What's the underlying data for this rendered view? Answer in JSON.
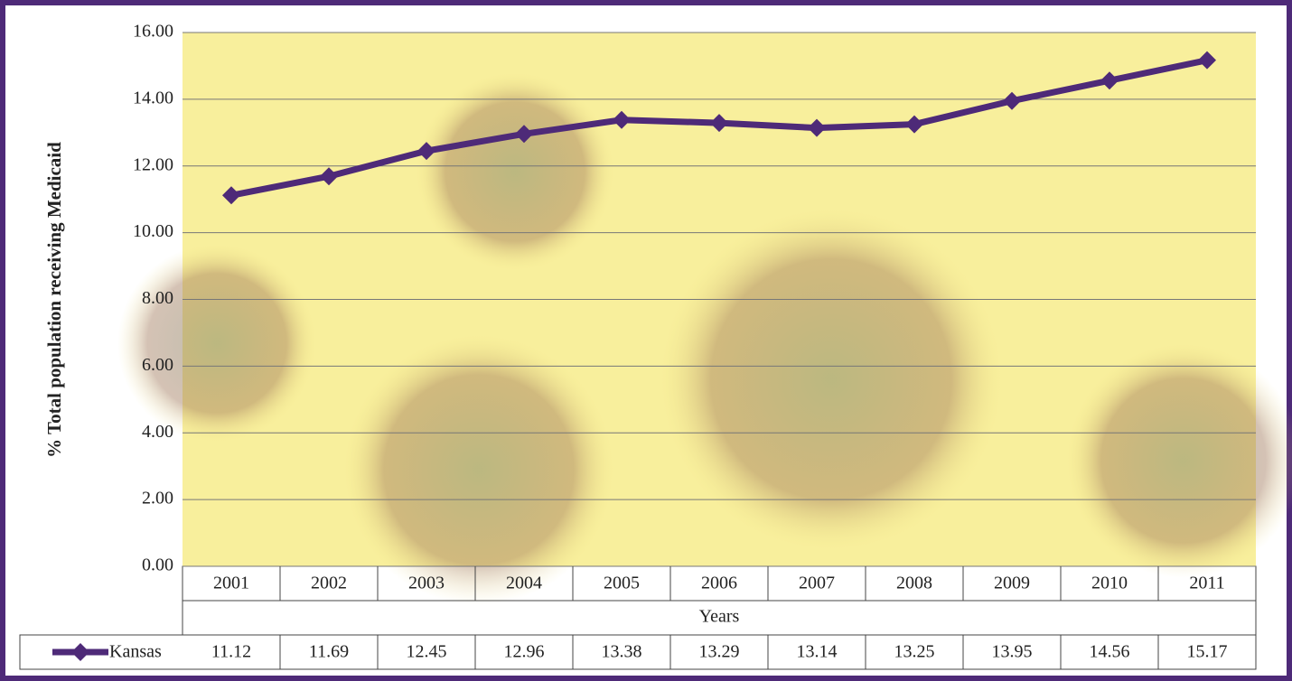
{
  "chart_data": {
    "type": "line",
    "y_label": "% Total population receiving Medicaid",
    "x_label": "Years",
    "categories": [
      "2001",
      "2002",
      "2003",
      "2004",
      "2005",
      "2006",
      "2007",
      "2008",
      "2009",
      "2010",
      "2011"
    ],
    "series": [
      {
        "name": "Kansas",
        "color": "#4e2a78",
        "values": [
          11.12,
          11.69,
          12.45,
          12.96,
          13.38,
          13.29,
          13.14,
          13.25,
          13.95,
          14.56,
          15.17
        ]
      }
    ],
    "ylim": [
      0,
      16
    ],
    "yticks": [
      {
        "value": 0,
        "label": "0.00"
      },
      {
        "value": 2,
        "label": "2.00"
      },
      {
        "value": 4,
        "label": "4.00"
      },
      {
        "value": 6,
        "label": "6.00"
      },
      {
        "value": 8,
        "label": "8.00"
      },
      {
        "value": 10,
        "label": "10.00"
      },
      {
        "value": 12,
        "label": "12.00"
      },
      {
        "value": 14,
        "label": "14.00"
      },
      {
        "value": 16,
        "label": "16.00"
      }
    ],
    "grid": true
  }
}
